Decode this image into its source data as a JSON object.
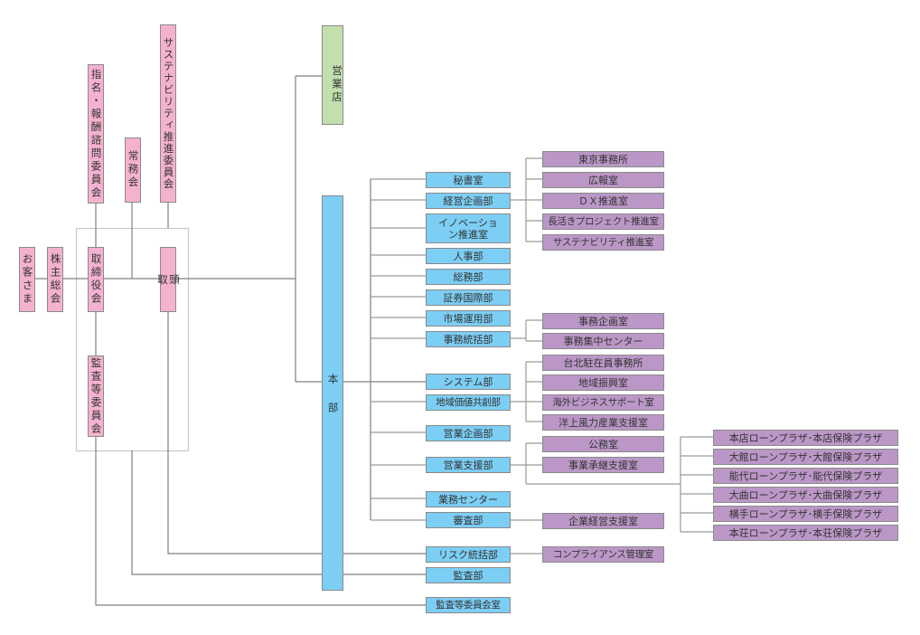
{
  "governance": {
    "customers": "お客さま",
    "shareholders_meeting": "株主総会",
    "board": "取締役会",
    "president": "頭取",
    "nomination_committee": "指名・報酬諮問委員会",
    "managing_committee": "常務会",
    "sustainability_committee": "サステナビリティ推進委員会",
    "audit_committee": "監査等委員会"
  },
  "branches": "営業店",
  "headquarters": "本部",
  "departments": [
    {
      "label": "秘書室"
    },
    {
      "label": "経営企画部",
      "children": [
        "東京事務所",
        "広報室",
        "ＤＸ推進室",
        "長活きプロジェクト推進室",
        "サステナビリティ推進室"
      ]
    },
    {
      "label": "イノベーション推進室"
    },
    {
      "label": "人事部"
    },
    {
      "label": "総務部"
    },
    {
      "label": "証券国際部"
    },
    {
      "label": "市場運用部"
    },
    {
      "label": "事務統括部",
      "children": [
        "事務企画室",
        "事務集中センター"
      ]
    },
    {
      "label": "システム部"
    },
    {
      "label": "地域価値共創部",
      "children": [
        "台北駐在員事務所",
        "地域振興室",
        "海外ビジネスサポート室",
        "洋上風力産業支援室"
      ]
    },
    {
      "label": "営業企画部"
    },
    {
      "label": "営業支援部",
      "children": [
        "公務室",
        "事業承継支援室"
      ],
      "plazas": [
        "本店ローンプラザ･本店保険プラザ",
        "大館ローンプラザ･大館保険プラザ",
        "能代ローンプラザ･能代保険プラザ",
        "大曲ローンプラザ･大曲保険プラザ",
        "横手ローンプラザ･横手保険プラザ",
        "本荘ローンプラザ･本荘保険プラザ"
      ]
    },
    {
      "label": "業務センター"
    },
    {
      "label": "審査部",
      "children": [
        "企業経営支援室"
      ]
    },
    {
      "label": "リスク統括部",
      "children": [
        "コンプライアンス管理室"
      ]
    },
    {
      "label": "監査部"
    },
    {
      "label": "監査等委員会室"
    }
  ],
  "colors": {
    "governance": "#f4b2cf",
    "branches": "#c2dfae",
    "headquarters": "#7ccef4",
    "sub_units": "#bb97c7",
    "lines": "#808080"
  }
}
